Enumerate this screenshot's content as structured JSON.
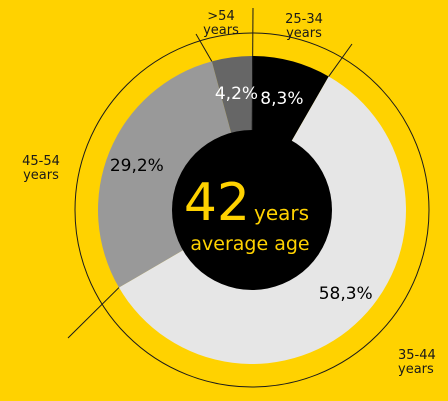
{
  "chart_data": {
    "type": "pie",
    "variant": "donut",
    "center": {
      "value": "42",
      "unit": "years",
      "caption": "average age"
    },
    "slices": [
      {
        "label": "25-34 years",
        "value": 8.3,
        "display": "8,3%",
        "color": "#000000",
        "text_color": "#ffffff"
      },
      {
        "label": "35-44 years",
        "value": 58.3,
        "display": "58,3%",
        "color": "#e6e6e6",
        "text_color": "#000000"
      },
      {
        "label": "45-54 years",
        "value": 29.2,
        "display": "29,2%",
        "color": "#999999",
        "text_color": "#000000"
      },
      {
        "label": ">54 years",
        "value": 4.2,
        "display": "4,2%",
        "color": "#666666",
        "text_color": "#ffffff"
      }
    ],
    "external_labels": {
      "gt54": ">54\nyears",
      "y25_34": "25-34\nyears",
      "y45_54": "45-54\nyears",
      "y35_44": "35-44\nyears"
    },
    "colors": {
      "background": "#ffd200",
      "center": "#000000",
      "center_text": "#ffd200"
    }
  }
}
